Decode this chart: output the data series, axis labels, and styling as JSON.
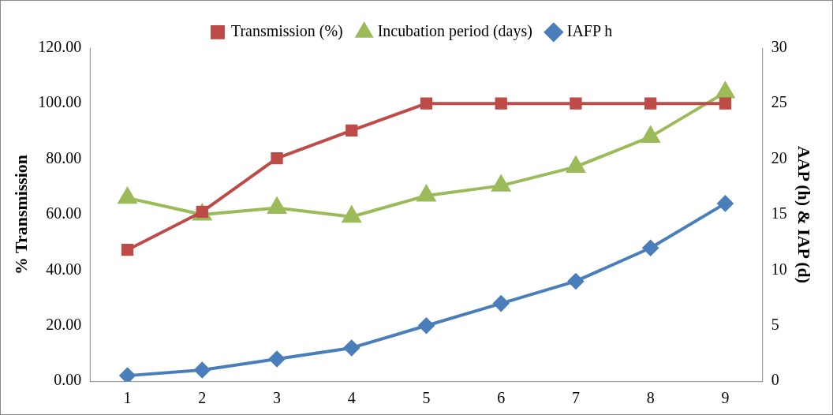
{
  "chart_data": {
    "type": "line",
    "ylabel": "% Transmission",
    "y2label": "AAP (h) & IAP (d)",
    "categories": [
      "1",
      "2",
      "3",
      "4",
      "5",
      "6",
      "7",
      "8",
      "9"
    ],
    "series": [
      {
        "name": "Transmission (%)",
        "color": "#be4b48",
        "marker": "square",
        "values": [
          47.3,
          61,
          80.3,
          90.3,
          100,
          100,
          100,
          100,
          100
        ]
      },
      {
        "name": "Incubation period (days)",
        "color": "#9bbb59",
        "marker": "triangle",
        "axis": "y2",
        "values": [
          16.5,
          15,
          15.6,
          14.8,
          16.7,
          17.6,
          19.3,
          22,
          26
        ]
      },
      {
        "name": "IAFP h",
        "color": "#4a7ebb",
        "marker": "diamond",
        "axis": "y2",
        "values": [
          0.5,
          1,
          2,
          3,
          5,
          7,
          9,
          12,
          16
        ]
      }
    ],
    "ylim": [
      0,
      120
    ],
    "yticks": [
      {
        "value": 0,
        "label": "0.00"
      },
      {
        "value": 20,
        "label": "20.00"
      },
      {
        "value": 40,
        "label": "40.00"
      },
      {
        "value": 60,
        "label": "60.00"
      },
      {
        "value": 80,
        "label": "80.00"
      },
      {
        "value": 100,
        "label": "100.00"
      },
      {
        "value": 120,
        "label": "120.00"
      }
    ],
    "y2lim": [
      0,
      30
    ],
    "y2ticks": [
      0,
      5,
      10,
      15,
      20,
      25,
      30
    ],
    "legend": "top",
    "grid": false,
    "line_style": "solid"
  }
}
